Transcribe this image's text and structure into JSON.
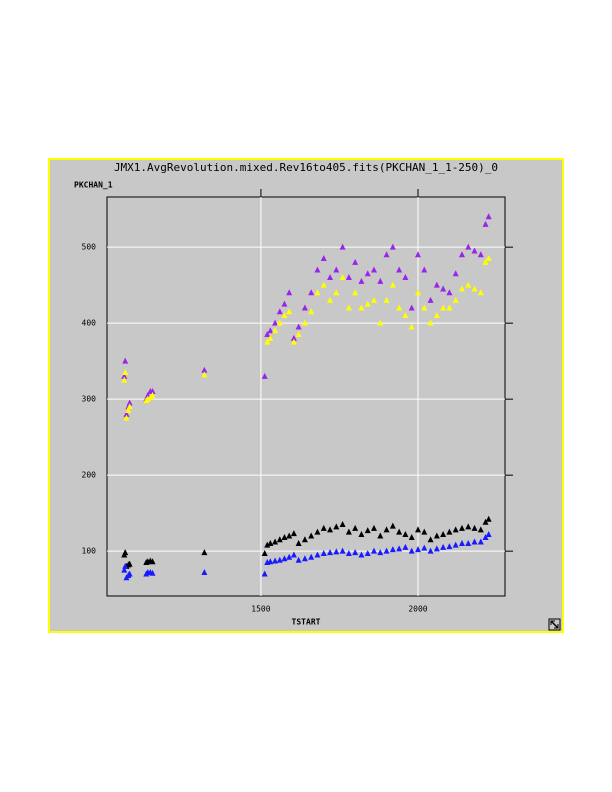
{
  "chart_data": {
    "type": "scatter",
    "title": "JMX1.AvgRevolution.mixed.Rev16to405.fits(PKCHAN_1_1-250)_0",
    "y_label": "PKCHAN_1",
    "x_label": "TSTART",
    "x": [
      1065,
      1068,
      1072,
      1078,
      1082,
      1135,
      1140,
      1148,
      1155,
      1320,
      1512,
      1520,
      1530,
      1545,
      1560,
      1575,
      1590,
      1605,
      1620,
      1640,
      1660,
      1680,
      1700,
      1720,
      1740,
      1760,
      1780,
      1800,
      1820,
      1840,
      1860,
      1880,
      1900,
      1920,
      1940,
      1960,
      1980,
      2000,
      2020,
      2040,
      2060,
      2080,
      2100,
      2120,
      2140,
      2160,
      2180,
      2200,
      2215,
      2225
    ],
    "series": [
      {
        "color": "#9a24e8",
        "values": [
          330,
          350,
          280,
          290,
          295,
          300,
          305,
          310,
          310,
          338,
          330,
          385,
          390,
          400,
          415,
          425,
          440,
          380,
          395,
          420,
          440,
          470,
          485,
          460,
          470,
          500,
          460,
          480,
          455,
          465,
          470,
          455,
          490,
          500,
          470,
          460,
          420,
          490,
          470,
          430,
          450,
          445,
          440,
          465,
          490,
          500,
          495,
          490,
          530,
          540
        ]
      },
      {
        "color": "#ffff00",
        "values": [
          325,
          335,
          275,
          285,
          290,
          298,
          300,
          302,
          305,
          332,
          null,
          375,
          380,
          390,
          400,
          410,
          415,
          375,
          385,
          400,
          415,
          440,
          450,
          430,
          440,
          460,
          420,
          440,
          420,
          425,
          430,
          400,
          430,
          450,
          420,
          410,
          395,
          440,
          420,
          400,
          410,
          420,
          420,
          430,
          445,
          450,
          445,
          440,
          480,
          485
        ]
      },
      {
        "color": "#000000",
        "values": [
          95,
          98,
          80,
          82,
          83,
          85,
          86,
          87,
          86,
          98,
          97,
          108,
          110,
          112,
          115,
          118,
          120,
          123,
          110,
          115,
          120,
          125,
          130,
          128,
          132,
          135,
          125,
          130,
          122,
          127,
          130,
          120,
          128,
          133,
          125,
          122,
          118,
          128,
          125,
          115,
          120,
          122,
          125,
          128,
          130,
          132,
          130,
          128,
          138,
          142
        ]
      },
      {
        "color": "#1a1aff",
        "values": [
          75,
          80,
          65,
          68,
          70,
          70,
          72,
          72,
          71,
          72,
          70,
          85,
          86,
          87,
          88,
          90,
          92,
          95,
          88,
          90,
          92,
          95,
          97,
          98,
          99,
          100,
          97,
          98,
          95,
          97,
          100,
          98,
          100,
          102,
          103,
          105,
          100,
          102,
          104,
          100,
          103,
          105,
          106,
          108,
          110,
          110,
          112,
          112,
          118,
          122
        ]
      }
    ],
    "xlim": [
      1010,
      2277
    ],
    "ylim": [
      41,
      566
    ],
    "xticks": [
      1500,
      2000
    ],
    "yticks": [
      100,
      200,
      300,
      400,
      500
    ],
    "grid": true
  }
}
